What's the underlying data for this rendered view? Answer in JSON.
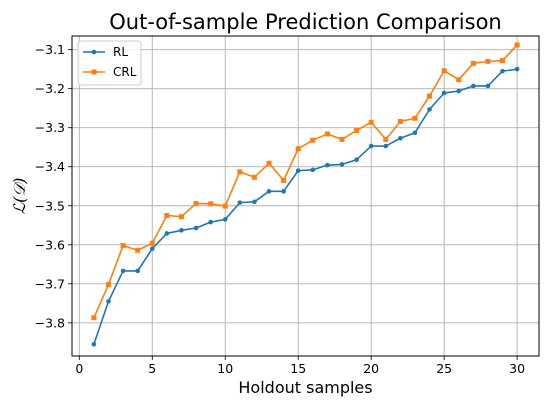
{
  "chart_data": {
    "type": "line",
    "title": "Out-of-sample Prediction Comparison",
    "xlabel": "Holdout samples",
    "ylabel": "ℒ(𝒟)",
    "xlim": [
      -0.5,
      31.5
    ],
    "ylim": [
      -3.885,
      -3.065
    ],
    "x_ticks": [
      0,
      5,
      10,
      15,
      20,
      25,
      30
    ],
    "y_ticks": [
      -3.8,
      -3.7,
      -3.6,
      -3.5,
      -3.4,
      -3.3,
      -3.2,
      -3.1
    ],
    "grid": true,
    "legend_position": "upper-left",
    "x": [
      1,
      2,
      3,
      4,
      5,
      6,
      7,
      8,
      9,
      10,
      11,
      12,
      13,
      14,
      15,
      16,
      17,
      18,
      19,
      20,
      21,
      22,
      23,
      24,
      25,
      26,
      27,
      28,
      29,
      30
    ],
    "series": [
      {
        "name": "RL",
        "color": "#1f77b4",
        "marker": "circle",
        "values": [
          -3.855,
          -3.745,
          -3.667,
          -3.667,
          -3.61,
          -3.571,
          -3.563,
          -3.557,
          -3.542,
          -3.535,
          -3.492,
          -3.49,
          -3.463,
          -3.463,
          -3.41,
          -3.408,
          -3.396,
          -3.394,
          -3.382,
          -3.347,
          -3.347,
          -3.327,
          -3.313,
          -3.253,
          -3.211,
          -3.206,
          -3.193,
          -3.193,
          -3.155,
          -3.15
        ]
      },
      {
        "name": "CRL",
        "color": "#ff7f0e",
        "marker": "square",
        "values": [
          -3.787,
          -3.702,
          -3.602,
          -3.614,
          -3.596,
          -3.525,
          -3.528,
          -3.494,
          -3.495,
          -3.501,
          -3.413,
          -3.427,
          -3.391,
          -3.435,
          -3.354,
          -3.332,
          -3.316,
          -3.33,
          -3.307,
          -3.286,
          -3.33,
          -3.284,
          -3.276,
          -3.219,
          -3.154,
          -3.177,
          -3.135,
          -3.13,
          -3.128,
          -3.088
        ]
      }
    ]
  }
}
